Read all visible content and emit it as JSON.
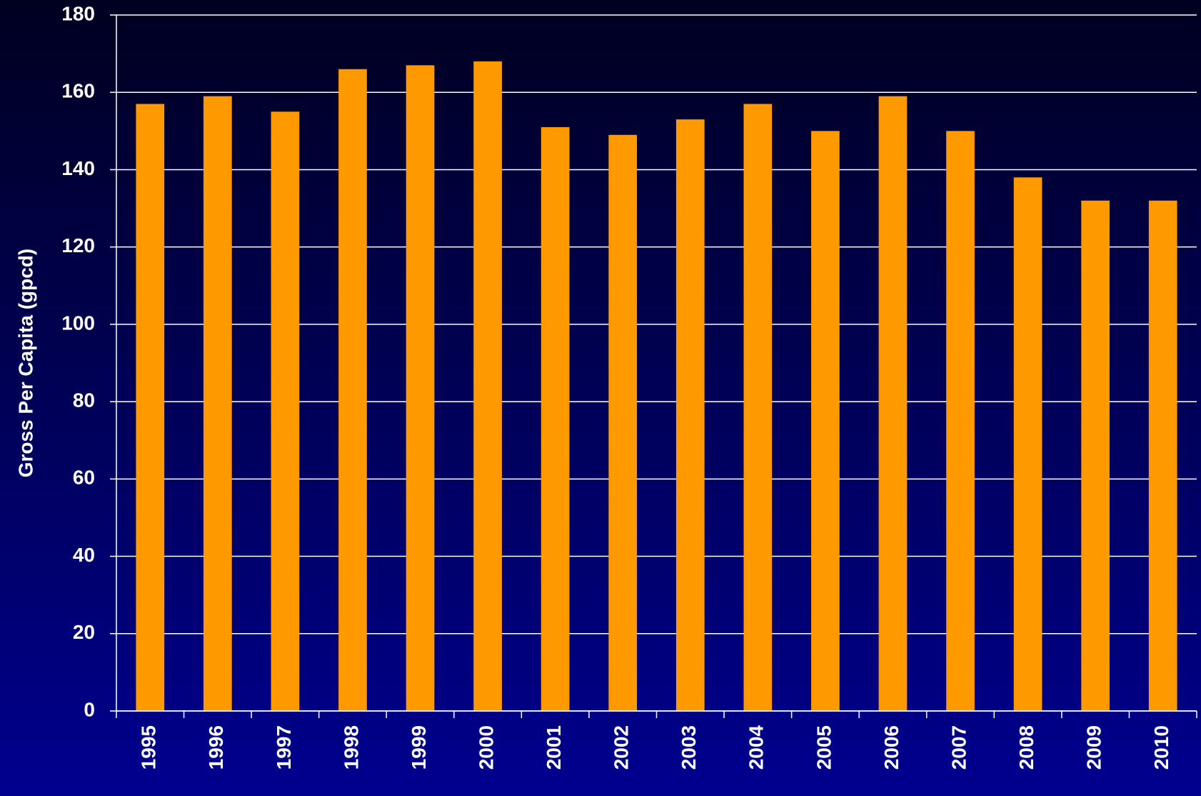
{
  "chart_data": {
    "type": "bar",
    "y_label": "Gross Per Capita (gpcd)",
    "categories": [
      "1995",
      "1996",
      "1997",
      "1998",
      "1999",
      "2000",
      "2001",
      "2002",
      "2003",
      "2004",
      "2005",
      "2006",
      "2007",
      "2008",
      "2009",
      "2010"
    ],
    "values": [
      157,
      159,
      155,
      166,
      167,
      168,
      151,
      149,
      153,
      157,
      150,
      159,
      150,
      138,
      132,
      132
    ],
    "color": "#ff9900",
    "ylim": [
      0,
      180
    ],
    "yticks": [
      0,
      20,
      40,
      60,
      80,
      100,
      120,
      140,
      160,
      180
    ],
    "grid": true
  }
}
